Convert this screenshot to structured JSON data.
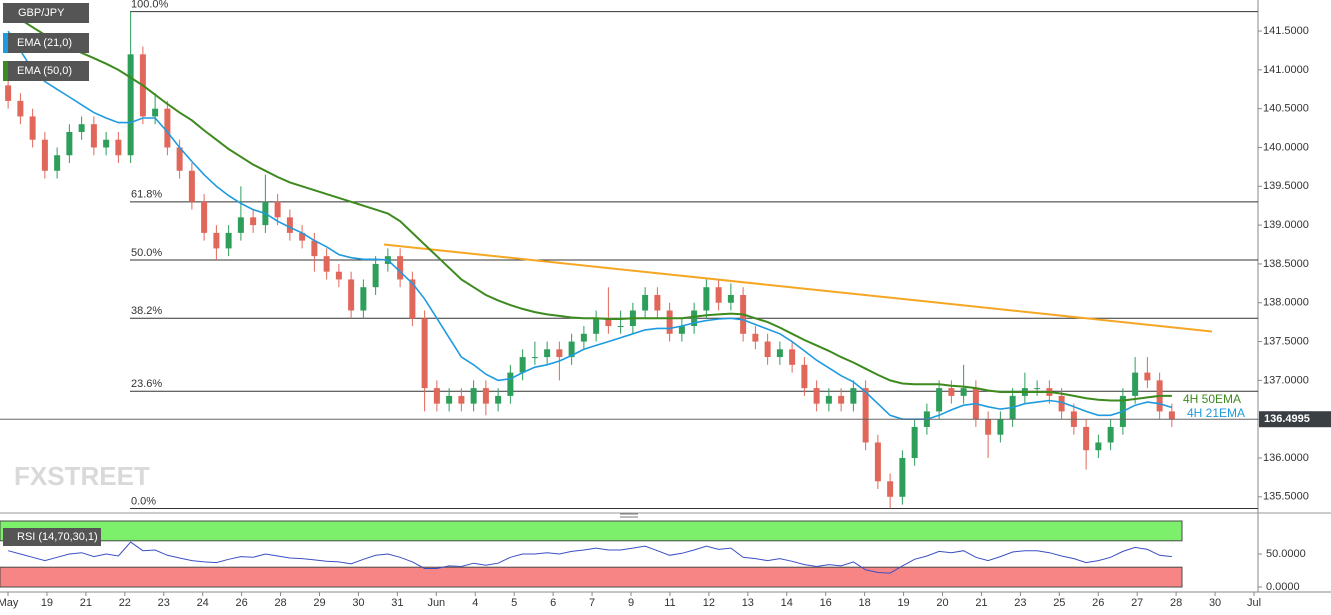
{
  "chart_data": {
    "type": "candlestick",
    "symbol": "GBP/JPY",
    "ylim": [
      135.33,
      141.9
    ],
    "yticks": [
      {
        "value": 135.5,
        "label": "135.5000"
      },
      {
        "value": 136,
        "label": "136.0000"
      },
      {
        "value": 136.5,
        "label": "136.5000"
      },
      {
        "value": 137,
        "label": "137.0000"
      },
      {
        "value": 137.5,
        "label": "137.5000"
      },
      {
        "value": 138,
        "label": "138.0000"
      },
      {
        "value": 138.5,
        "label": "138.5000"
      },
      {
        "value": 139,
        "label": "139.0000"
      },
      {
        "value": 139.5,
        "label": "139.5000"
      },
      {
        "value": 140,
        "label": "140.0000"
      },
      {
        "value": 140.5,
        "label": "140.5000"
      },
      {
        "value": 141,
        "label": "141.0000"
      },
      {
        "value": 141.5,
        "label": "141.5000"
      }
    ],
    "up_color": "#2e9e5b",
    "down_color": "#e0675a",
    "open": [
      140.8,
      140.6,
      140.4,
      140.1,
      139.7,
      139.9,
      140.2,
      140.3,
      140.0,
      140.1,
      139.9,
      141.2,
      140.4,
      140.5,
      140.0,
      139.7,
      139.3,
      138.9,
      138.7,
      138.9,
      139.1,
      139.0,
      139.3,
      139.1,
      138.9,
      138.8,
      138.6,
      138.4,
      138.3,
      137.9,
      138.2,
      138.5,
      138.6,
      138.3,
      137.8,
      136.9,
      136.7,
      136.8,
      136.7,
      136.9,
      136.7,
      136.8,
      137.1,
      137.3,
      137.3,
      137.4,
      137.3,
      137.5,
      137.6,
      137.8,
      137.7,
      137.7,
      137.9,
      138.1,
      137.9,
      137.6,
      137.7,
      137.9,
      138.2,
      138.0,
      138.1,
      137.6,
      137.5,
      137.3,
      137.4,
      137.2,
      136.9,
      136.7,
      136.8,
      136.7,
      136.9,
      136.2,
      135.7,
      135.5,
      136.0,
      136.4,
      136.6,
      136.9,
      136.8,
      136.9,
      136.5,
      136.3,
      136.5,
      136.8,
      136.9,
      136.9,
      136.8,
      136.6,
      136.4,
      136.1,
      136.2,
      136.4,
      136.8,
      137.1,
      137.0,
      136.6
    ],
    "high": [
      140.9,
      140.7,
      140.5,
      140.2,
      140.0,
      140.3,
      140.4,
      140.4,
      140.2,
      140.2,
      141.75,
      141.3,
      140.7,
      140.6,
      140.1,
      139.8,
      139.4,
      139.0,
      139.0,
      139.5,
      139.2,
      139.65,
      139.4,
      139.2,
      139.0,
      138.9,
      138.7,
      138.5,
      138.4,
      138.3,
      138.6,
      138.7,
      138.7,
      138.4,
      137.9,
      137.0,
      136.9,
      136.9,
      137.0,
      137.0,
      136.9,
      137.2,
      137.4,
      137.5,
      137.5,
      137.5,
      137.6,
      137.7,
      137.9,
      138.2,
      137.9,
      138.0,
      138.2,
      138.2,
      138.0,
      137.8,
      138.0,
      138.3,
      138.3,
      138.25,
      138.2,
      137.7,
      137.6,
      137.5,
      137.5,
      137.3,
      137.0,
      136.9,
      136.9,
      137.0,
      137.0,
      136.3,
      135.8,
      136.1,
      136.5,
      136.7,
      137.0,
      137.0,
      137.2,
      137.0,
      136.6,
      136.6,
      136.9,
      137.1,
      137.0,
      137.0,
      136.9,
      136.7,
      136.5,
      136.3,
      136.5,
      136.9,
      137.3,
      137.3,
      137.1,
      136.7
    ],
    "low": [
      140.5,
      140.3,
      140.0,
      139.6,
      139.6,
      139.8,
      140.1,
      139.9,
      139.9,
      139.8,
      139.8,
      140.3,
      140.3,
      139.9,
      139.6,
      139.2,
      138.8,
      138.55,
      138.6,
      138.8,
      138.9,
      138.9,
      139.0,
      138.8,
      138.7,
      138.4,
      138.3,
      138.2,
      137.8,
      137.8,
      138.1,
      138.4,
      138.2,
      137.7,
      136.6,
      136.6,
      136.6,
      136.6,
      136.6,
      136.55,
      136.6,
      136.7,
      137.0,
      137.2,
      137.2,
      137.0,
      137.2,
      137.4,
      137.5,
      137.6,
      137.6,
      137.6,
      137.8,
      137.8,
      137.5,
      137.5,
      137.6,
      137.8,
      137.9,
      137.9,
      137.5,
      137.4,
      137.2,
      137.2,
      137.1,
      136.8,
      136.6,
      136.6,
      136.6,
      136.6,
      136.1,
      135.6,
      135.35,
      135.4,
      135.9,
      136.3,
      136.5,
      136.7,
      136.7,
      136.4,
      136.0,
      136.2,
      136.4,
      136.7,
      136.8,
      136.7,
      136.5,
      136.3,
      135.85,
      136.0,
      136.1,
      136.3,
      136.7,
      136.9,
      136.5,
      136.4
    ],
    "close": [
      140.6,
      140.4,
      140.1,
      139.7,
      139.9,
      140.2,
      140.3,
      140.0,
      140.1,
      139.9,
      141.2,
      140.4,
      140.5,
      140.0,
      139.7,
      139.3,
      138.9,
      138.7,
      138.9,
      139.1,
      139.0,
      139.3,
      139.1,
      138.9,
      138.8,
      138.6,
      138.4,
      138.3,
      137.9,
      138.2,
      138.5,
      138.6,
      138.3,
      137.8,
      136.9,
      136.7,
      136.8,
      136.7,
      136.9,
      136.7,
      136.8,
      137.1,
      137.3,
      137.3,
      137.4,
      137.3,
      137.5,
      137.6,
      137.8,
      137.7,
      137.7,
      137.9,
      138.1,
      137.9,
      137.6,
      137.7,
      137.9,
      138.2,
      138.0,
      138.1,
      137.6,
      137.5,
      137.3,
      137.4,
      137.2,
      136.9,
      136.7,
      136.8,
      136.7,
      136.9,
      136.2,
      135.7,
      135.5,
      136.0,
      136.4,
      136.6,
      136.9,
      136.8,
      136.9,
      136.5,
      136.3,
      136.5,
      136.8,
      136.9,
      136.9,
      136.8,
      136.6,
      136.4,
      136.1,
      136.2,
      136.4,
      136.8,
      137.1,
      137.0,
      136.6,
      136.5
    ],
    "series": [
      {
        "name": "EMA (21,0)",
        "color": "#1e9be0",
        "values": [
          141.5,
          141.25,
          141.0,
          140.85,
          140.75,
          140.65,
          140.55,
          140.45,
          140.38,
          140.32,
          140.32,
          140.38,
          140.38,
          140.2,
          140.0,
          139.82,
          139.65,
          139.5,
          139.38,
          139.28,
          139.2,
          139.15,
          139.05,
          138.97,
          138.9,
          138.8,
          138.72,
          138.62,
          138.58,
          138.56,
          138.56,
          138.55,
          138.4,
          138.25,
          138.05,
          137.8,
          137.55,
          137.3,
          137.2,
          137.08,
          137.0,
          137.02,
          137.1,
          137.17,
          137.2,
          137.25,
          137.32,
          137.4,
          137.45,
          137.5,
          137.55,
          137.6,
          137.65,
          137.67,
          137.67,
          137.7,
          137.74,
          137.77,
          137.79,
          137.8,
          137.78,
          137.72,
          137.66,
          137.6,
          137.5,
          137.38,
          137.26,
          137.16,
          137.06,
          136.98,
          136.85,
          136.7,
          136.55,
          136.5,
          136.5,
          136.5,
          136.55,
          136.62,
          136.68,
          136.7,
          136.66,
          136.63,
          136.65,
          136.7,
          136.72,
          136.74,
          136.72,
          136.66,
          136.6,
          136.55,
          136.55,
          136.6,
          136.68,
          136.72,
          136.7,
          136.65
        ]
      },
      {
        "name": "EMA (50,0)",
        "color": "#3d8a1f",
        "values": [
          141.75,
          141.65,
          141.55,
          141.45,
          141.38,
          141.3,
          141.22,
          141.15,
          141.08,
          141.0,
          140.9,
          140.8,
          140.68,
          140.56,
          140.45,
          140.35,
          140.22,
          140.1,
          139.98,
          139.88,
          139.78,
          139.7,
          139.62,
          139.55,
          139.5,
          139.45,
          139.4,
          139.35,
          139.3,
          139.25,
          139.2,
          139.15,
          139.05,
          138.9,
          138.75,
          138.6,
          138.45,
          138.3,
          138.2,
          138.1,
          138.03,
          137.97,
          137.92,
          137.88,
          137.85,
          137.83,
          137.81,
          137.8,
          137.8,
          137.79,
          137.79,
          137.8,
          137.8,
          137.8,
          137.8,
          137.8,
          137.82,
          137.84,
          137.85,
          137.86,
          137.85,
          137.8,
          137.75,
          137.68,
          137.6,
          137.52,
          137.45,
          137.38,
          137.3,
          137.23,
          137.15,
          137.07,
          137.0,
          136.96,
          136.95,
          136.95,
          136.95,
          136.93,
          136.92,
          136.9,
          136.87,
          136.85,
          136.85,
          136.85,
          136.85,
          136.85,
          136.83,
          136.8,
          136.77,
          136.75,
          136.74,
          136.74,
          136.76,
          136.78,
          136.8,
          136.8
        ]
      }
    ],
    "fibonacci": [
      {
        "level": "100.0%",
        "price": 141.75
      },
      {
        "level": "61.8%",
        "price": 139.3
      },
      {
        "level": "50.0%",
        "price": 138.55
      },
      {
        "level": "38.2%",
        "price": 137.8
      },
      {
        "level": "23.6%",
        "price": 136.86
      },
      {
        "level": "0.0%",
        "price": 135.35
      }
    ],
    "trendline": {
      "color": "#f5a623",
      "start": 138.75,
      "end": 137.63
    },
    "last_price": 136.4995,
    "annotations": [
      {
        "text": "4H 50EMA",
        "color": "#3d8a1f"
      },
      {
        "text": "4H 21EMA",
        "color": "#1e9be0"
      }
    ],
    "x_labels": [
      "May",
      "19",
      "21",
      "22",
      "23",
      "24",
      "26",
      "28",
      "29",
      "30",
      "31",
      "Jun",
      "4",
      "5",
      "6",
      "7",
      "9",
      "11",
      "12",
      "13",
      "14",
      "16",
      "18",
      "19",
      "20",
      "21",
      "23",
      "25",
      "26",
      "27",
      "28",
      "30",
      "Jul"
    ],
    "watermark": "FXSTREET",
    "rsi": {
      "name": "RSI (14,70,30,1)",
      "color": "#3b4fc4",
      "ylim": [
        0,
        100
      ],
      "upper": 70,
      "lower": 30,
      "yticks": [
        {
          "value": 50,
          "label": "50.0000"
        },
        {
          "value": 0,
          "label": "0.0000"
        }
      ],
      "values": [
        55,
        50,
        45,
        40,
        45,
        50,
        52,
        46,
        50,
        47,
        68,
        55,
        56,
        48,
        44,
        40,
        38,
        37,
        42,
        46,
        45,
        50,
        47,
        44,
        43,
        41,
        39,
        38,
        35,
        42,
        48,
        50,
        45,
        38,
        28,
        28,
        32,
        31,
        36,
        33,
        36,
        45,
        50,
        50,
        52,
        50,
        54,
        56,
        59,
        56,
        56,
        59,
        62,
        55,
        48,
        51,
        56,
        62,
        57,
        59,
        45,
        43,
        40,
        43,
        39,
        34,
        31,
        34,
        32,
        38,
        26,
        22,
        21,
        32,
        42,
        47,
        54,
        52,
        55,
        45,
        40,
        46,
        53,
        55,
        55,
        52,
        47,
        43,
        37,
        40,
        45,
        54,
        60,
        57,
        48,
        46
      ]
    }
  }
}
